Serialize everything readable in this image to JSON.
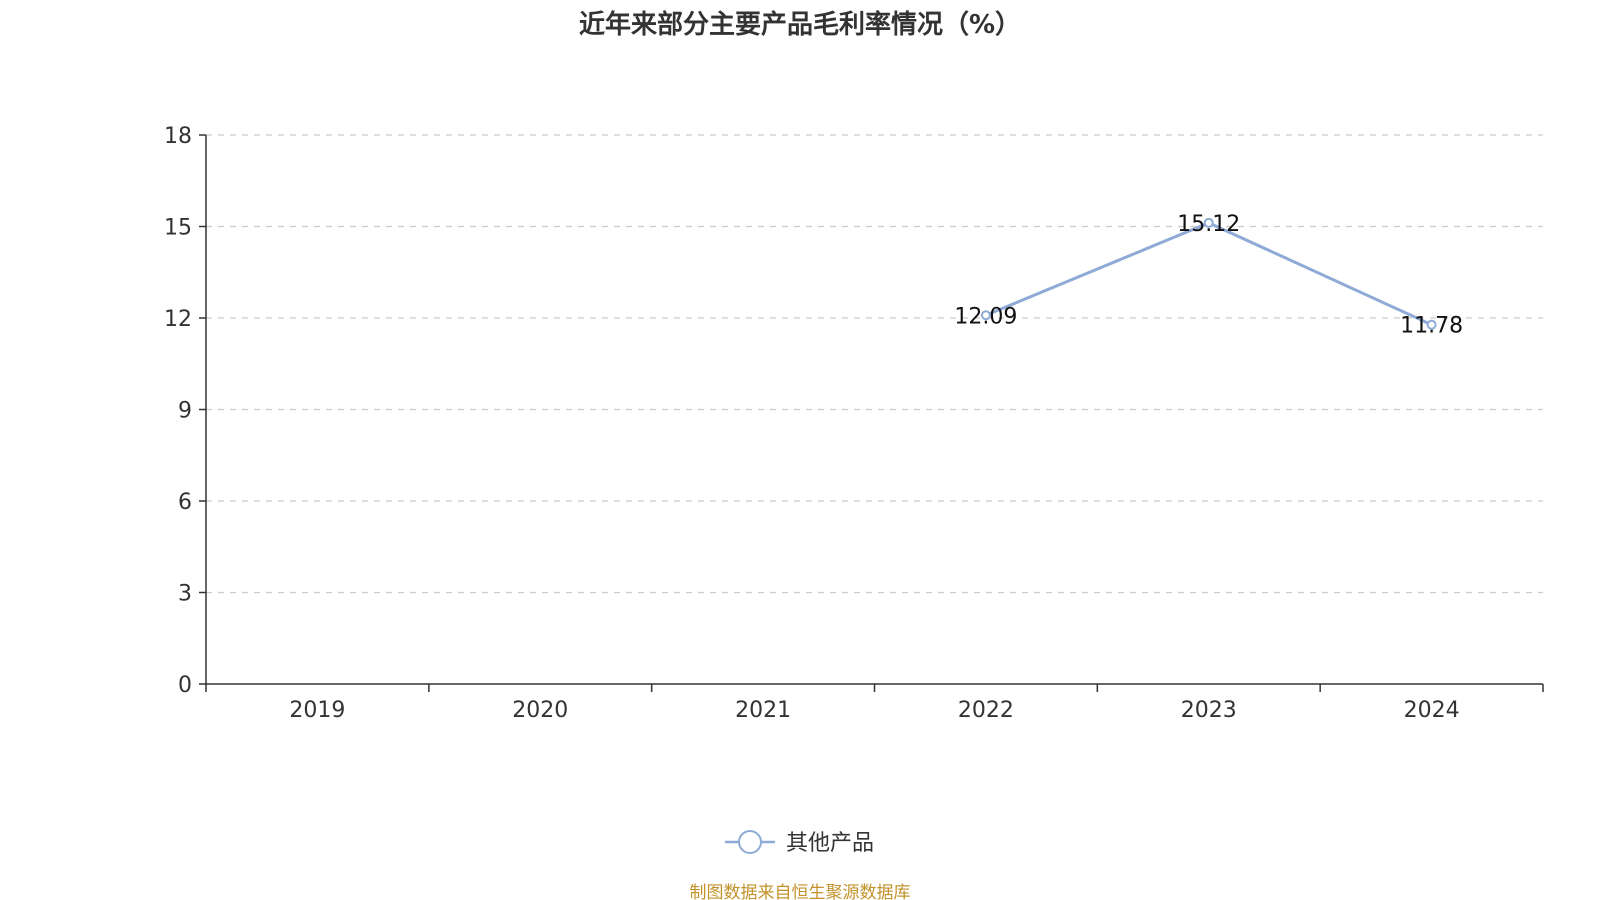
{
  "chart_data": {
    "type": "line",
    "title": "近年来部分主要产品毛利率情况（%）",
    "categories": [
      "2019",
      "2020",
      "2021",
      "2022",
      "2023",
      "2024"
    ],
    "series": [
      {
        "name": "其他产品",
        "values": [
          null,
          null,
          null,
          12.09,
          15.12,
          11.78
        ],
        "labels": [
          "",
          "",
          "",
          "12.09",
          "15.12",
          "11.78"
        ],
        "color": "#8eaad6"
      }
    ],
    "ylim": [
      0,
      18
    ],
    "yticks": [
      0,
      3,
      6,
      9,
      12,
      15,
      18
    ],
    "ytick_labels": [
      "0",
      "3",
      "6",
      "9",
      "12",
      "15",
      "18"
    ],
    "grid": true,
    "legend_position": "bottom-center",
    "xlabel": "",
    "ylabel": ""
  },
  "source": {
    "text": "制图数据来自恒生聚源数据库",
    "color": "#c4922b"
  },
  "colors": {
    "axis": "#333333",
    "grid": "#cccccc"
  }
}
